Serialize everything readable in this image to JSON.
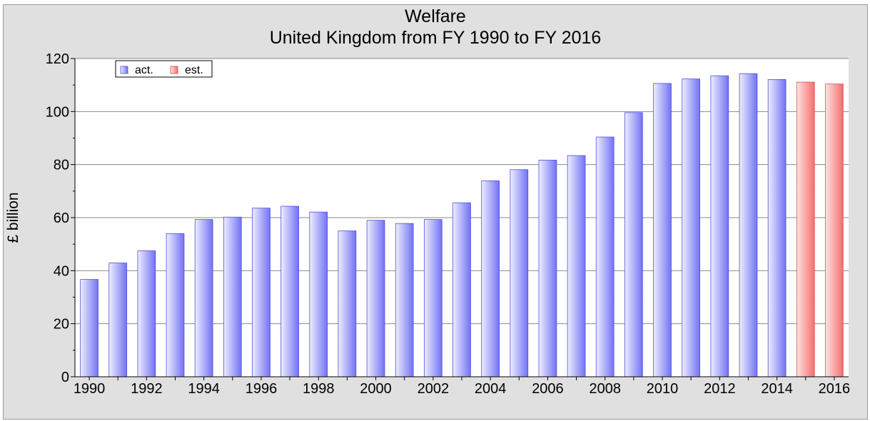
{
  "chart_data": {
    "type": "bar",
    "title": "Welfare",
    "subtitle": "United Kingdom from FY 1990 to FY 2016",
    "xlabel": "",
    "ylabel": "£ billion",
    "ylim": [
      0,
      120
    ],
    "yticks": [
      0,
      20,
      40,
      60,
      80,
      100,
      120
    ],
    "xtick_labels": [
      "1990",
      "1992",
      "1994",
      "1996",
      "1998",
      "2000",
      "2002",
      "2004",
      "2006",
      "2008",
      "2010",
      "2012",
      "2014",
      "2016"
    ],
    "grid": true,
    "legend_position": "top-left",
    "categories": [
      "1990",
      "1991",
      "1992",
      "1993",
      "1994",
      "1995",
      "1996",
      "1997",
      "1998",
      "1999",
      "2000",
      "2001",
      "2002",
      "2003",
      "2004",
      "2005",
      "2006",
      "2007",
      "2008",
      "2009",
      "2010",
      "2011",
      "2012",
      "2013",
      "2014",
      "2015",
      "2016"
    ],
    "series": [
      {
        "name": "act.",
        "color": "#8080f8",
        "values": [
          36.7,
          42.9,
          47.5,
          54.0,
          59.3,
          60.2,
          63.6,
          64.3,
          62.1,
          55.0,
          59.0,
          57.8,
          59.3,
          65.6,
          73.9,
          78.1,
          81.7,
          83.4,
          90.4,
          99.6,
          110.6,
          112.3,
          113.5,
          114.3,
          112.1,
          null,
          null
        ]
      },
      {
        "name": "est.",
        "color": "#f87c7c",
        "values": [
          null,
          null,
          null,
          null,
          null,
          null,
          null,
          null,
          null,
          null,
          null,
          null,
          null,
          null,
          null,
          null,
          null,
          null,
          null,
          null,
          null,
          null,
          null,
          null,
          null,
          111.1,
          110.4
        ]
      }
    ]
  }
}
